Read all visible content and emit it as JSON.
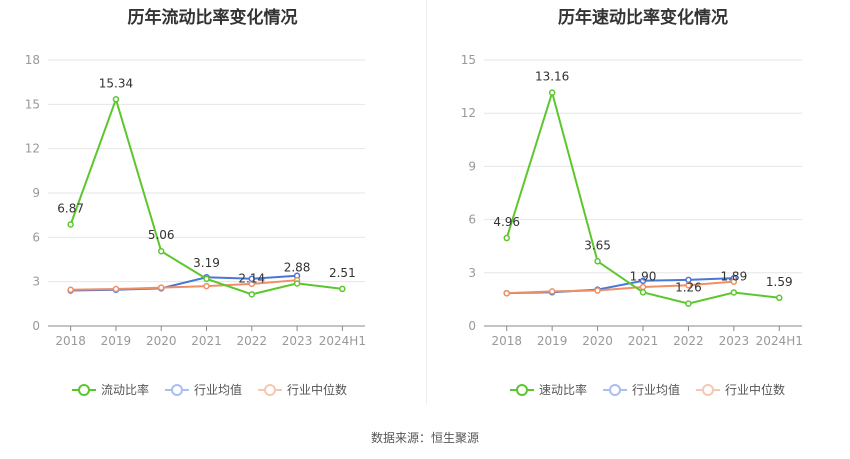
{
  "source_text": "数据来源：恒生聚源",
  "colors": {
    "primary": "#5cc72d",
    "industry_avg": "#4a77d6",
    "industry_median": "#ee8f66",
    "grid": "#e6e6e6",
    "axis": "#888888"
  },
  "chart_data": [
    {
      "type": "line",
      "title": "历年流动比率变化情况",
      "categories": [
        "2018",
        "2019",
        "2020",
        "2021",
        "2022",
        "2023",
        "2024H1"
      ],
      "ylim": [
        0,
        18
      ],
      "yticks": [
        0,
        3,
        6,
        9,
        12,
        15,
        18
      ],
      "grid": true,
      "legend_position": "bottom",
      "series": [
        {
          "name": "流动比率",
          "color": "#5cc72d",
          "values": [
            6.87,
            15.34,
            5.06,
            3.19,
            2.14,
            2.88,
            2.51
          ],
          "labels": [
            "6.87",
            "15.34",
            "5.06",
            "3.19",
            "2.14",
            "2.88",
            "2.51"
          ]
        },
        {
          "name": "行业均值",
          "color": "#4a77d6",
          "values": [
            2.4,
            2.45,
            2.55,
            3.3,
            3.2,
            3.4,
            null
          ]
        },
        {
          "name": "行业中位数",
          "color": "#ee8f66",
          "values": [
            2.45,
            2.5,
            2.6,
            2.7,
            2.85,
            3.1,
            null
          ]
        }
      ]
    },
    {
      "type": "line",
      "title": "历年速动比率变化情况",
      "categories": [
        "2018",
        "2019",
        "2020",
        "2021",
        "2022",
        "2023",
        "2024H1"
      ],
      "ylim": [
        0,
        15
      ],
      "yticks": [
        0,
        3,
        6,
        9,
        12,
        15
      ],
      "grid": true,
      "legend_position": "bottom",
      "series": [
        {
          "name": "速动比率",
          "color": "#5cc72d",
          "values": [
            4.96,
            13.16,
            3.65,
            1.9,
            1.26,
            1.89,
            1.59
          ],
          "labels": [
            "4.96",
            "13.16",
            "3.65",
            "1.90",
            "1.26",
            "1.89",
            "1.59"
          ]
        },
        {
          "name": "行业均值",
          "color": "#4a77d6",
          "values": [
            1.85,
            1.9,
            2.05,
            2.55,
            2.6,
            2.7,
            null
          ]
        },
        {
          "name": "行业中位数",
          "color": "#ee8f66",
          "values": [
            1.85,
            1.95,
            2.0,
            2.2,
            2.3,
            2.5,
            null
          ]
        }
      ]
    }
  ]
}
